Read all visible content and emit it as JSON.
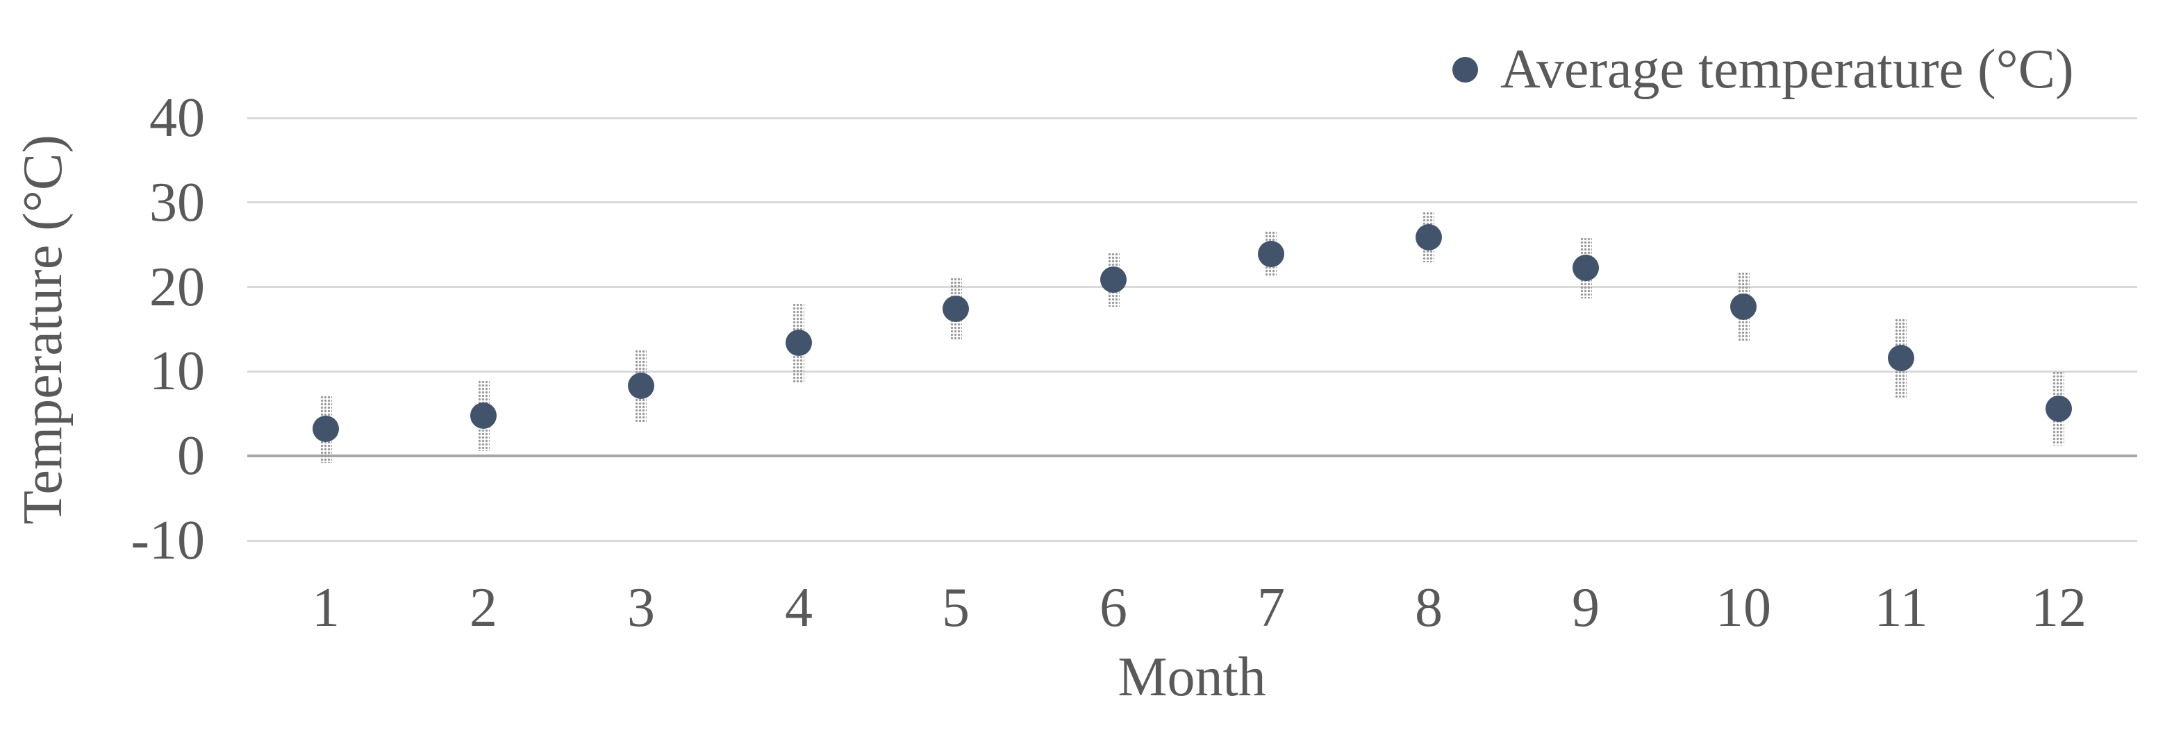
{
  "chart_data": {
    "type": "scatter",
    "title": "",
    "xlabel": "Month",
    "ylabel": "Temperature (°C)",
    "legend": {
      "label": "Average temperature (°C)",
      "position": "top-right",
      "marker": "circle"
    },
    "categories": [
      "1",
      "2",
      "3",
      "4",
      "5",
      "6",
      "7",
      "8",
      "9",
      "10",
      "11",
      "12"
    ],
    "series": [
      {
        "name": "Average temperature (°C)",
        "values": [
          3.2,
          4.8,
          8.3,
          13.4,
          17.4,
          20.9,
          23.9,
          25.9,
          22.3,
          17.7,
          11.6,
          5.6
        ],
        "error_bars": [
          4.0,
          4.2,
          4.3,
          4.7,
          3.7,
          3.2,
          2.7,
          3.0,
          3.6,
          4.1,
          4.7,
          4.4
        ]
      }
    ],
    "yticks": [
      40,
      30,
      20,
      10,
      0,
      -10
    ],
    "ylim": [
      -10,
      40
    ],
    "grid": "horizontal-only"
  },
  "colors": {
    "point": "#42546c",
    "text": "#595959",
    "gridline": "#d9d9d9",
    "zero_axis_line": "#a6a6a6",
    "error_bar_dots": "#9b9b9b",
    "background": "#ffffff"
  }
}
